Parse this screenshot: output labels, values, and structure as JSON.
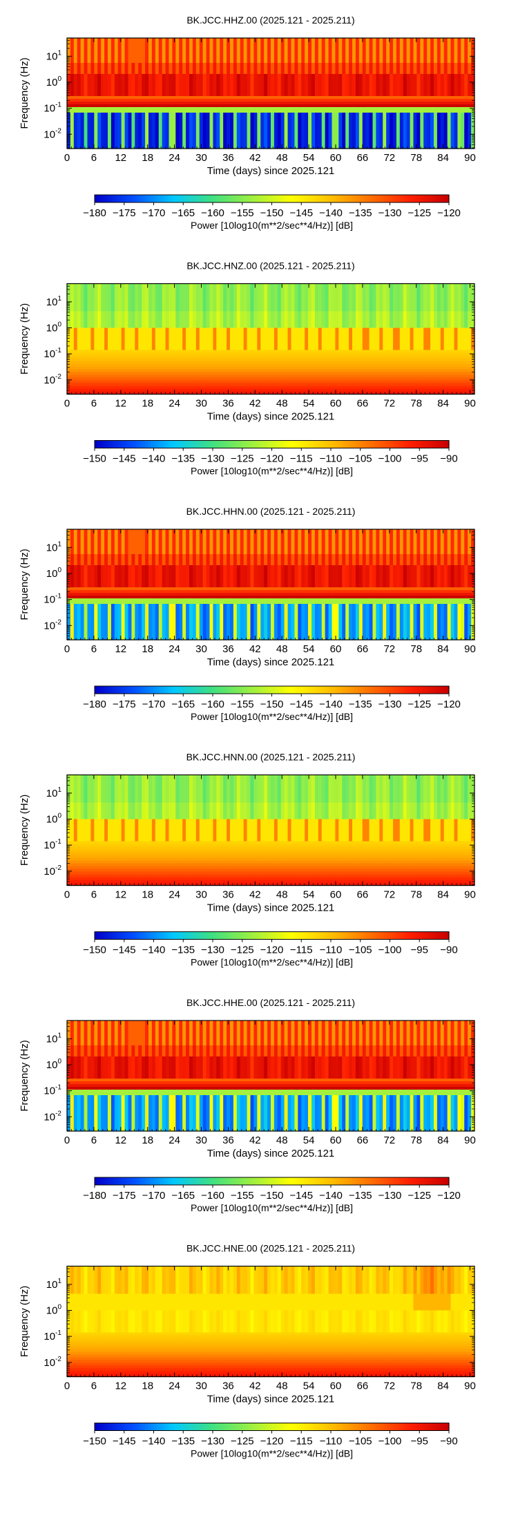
{
  "chart_data": [
    {
      "type": "heatmap",
      "title": "BK.JCC.HHZ.00 (2025.121 - 2025.211)",
      "xlabel": "Time (days) since 2025.121",
      "ylabel": "Frequency (Hz)",
      "x_ticks": [
        "0",
        "6",
        "12",
        "18",
        "24",
        "30",
        "36",
        "42",
        "48",
        "54",
        "60",
        "66",
        "72",
        "78",
        "84",
        "90"
      ],
      "y_ticks": [
        "10^1",
        "10^0",
        "10^-1",
        "10^-2"
      ],
      "xlim": [
        0,
        91
      ],
      "y_scale": "log",
      "colorbar_label": "Power [10log10(m**2/sec**4/Hz)] [dB]",
      "colorbar_ticks": [
        "-180",
        "-175",
        "-170",
        "-165",
        "-160",
        "-155",
        "-150",
        "-145",
        "-140",
        "-135",
        "-130",
        "-125",
        "-120"
      ],
      "clim": [
        -180,
        -120
      ],
      "colormap": [
        "#0000c8",
        "#0050ff",
        "#00c8ff",
        "#40e080",
        "#9ef040",
        "#ffff00",
        "#ffc000",
        "#ff7000",
        "#ff2000",
        "#c80000"
      ],
      "pattern": "high-gain"
    },
    {
      "type": "heatmap",
      "title": "BK.JCC.HNZ.00 (2025.121 - 2025.211)",
      "xlabel": "Time (days) since 2025.121",
      "ylabel": "Frequency (Hz)",
      "x_ticks": [
        "0",
        "6",
        "12",
        "18",
        "24",
        "30",
        "36",
        "42",
        "48",
        "54",
        "60",
        "66",
        "72",
        "78",
        "84",
        "90"
      ],
      "y_ticks": [
        "10^1",
        "10^0",
        "10^-1",
        "10^-2"
      ],
      "xlim": [
        0,
        91
      ],
      "y_scale": "log",
      "colorbar_label": "Power [10log10(m**2/sec**4/Hz)] [dB]",
      "colorbar_ticks": [
        "-150",
        "-145",
        "-140",
        "-135",
        "-130",
        "-125",
        "-120",
        "-115",
        "-110",
        "-105",
        "-100",
        "-95",
        "-90"
      ],
      "clim": [
        -150,
        -90
      ],
      "colormap": [
        "#0000c8",
        "#0050ff",
        "#00c8ff",
        "#40e080",
        "#9ef040",
        "#ffff00",
        "#ffc000",
        "#ff7000",
        "#ff2000",
        "#c80000"
      ],
      "pattern": "strong-motion"
    },
    {
      "type": "heatmap",
      "title": "BK.JCC.HHN.00 (2025.121 - 2025.211)",
      "xlabel": "Time (days) since 2025.121",
      "ylabel": "Frequency (Hz)",
      "x_ticks": [
        "0",
        "6",
        "12",
        "18",
        "24",
        "30",
        "36",
        "42",
        "48",
        "54",
        "60",
        "66",
        "72",
        "78",
        "84",
        "90"
      ],
      "y_ticks": [
        "10^1",
        "10^0",
        "10^-1",
        "10^-2"
      ],
      "xlim": [
        0,
        91
      ],
      "y_scale": "log",
      "colorbar_label": "Power [10log10(m**2/sec**4/Hz)] [dB]",
      "colorbar_ticks": [
        "-180",
        "-175",
        "-170",
        "-165",
        "-160",
        "-155",
        "-150",
        "-145",
        "-140",
        "-135",
        "-130",
        "-125",
        "-120"
      ],
      "clim": [
        -180,
        -120
      ],
      "colormap": [
        "#0000c8",
        "#0050ff",
        "#00c8ff",
        "#40e080",
        "#9ef040",
        "#ffff00",
        "#ffc000",
        "#ff7000",
        "#ff2000",
        "#c80000"
      ],
      "pattern": "high-gain-horizontal"
    },
    {
      "type": "heatmap",
      "title": "BK.JCC.HNN.00 (2025.121 - 2025.211)",
      "xlabel": "Time (days) since 2025.121",
      "ylabel": "Frequency (Hz)",
      "x_ticks": [
        "0",
        "6",
        "12",
        "18",
        "24",
        "30",
        "36",
        "42",
        "48",
        "54",
        "60",
        "66",
        "72",
        "78",
        "84",
        "90"
      ],
      "y_ticks": [
        "10^1",
        "10^0",
        "10^-1",
        "10^-2"
      ],
      "xlim": [
        0,
        91
      ],
      "y_scale": "log",
      "colorbar_label": "Power [10log10(m**2/sec**4/Hz)] [dB]",
      "colorbar_ticks": [
        "-150",
        "-145",
        "-140",
        "-135",
        "-130",
        "-125",
        "-120",
        "-115",
        "-110",
        "-105",
        "-100",
        "-95",
        "-90"
      ],
      "clim": [
        -150,
        -90
      ],
      "colormap": [
        "#0000c8",
        "#0050ff",
        "#00c8ff",
        "#40e080",
        "#9ef040",
        "#ffff00",
        "#ffc000",
        "#ff7000",
        "#ff2000",
        "#c80000"
      ],
      "pattern": "strong-motion"
    },
    {
      "type": "heatmap",
      "title": "BK.JCC.HHE.00 (2025.121 - 2025.211)",
      "xlabel": "Time (days) since 2025.121",
      "ylabel": "Frequency (Hz)",
      "x_ticks": [
        "0",
        "6",
        "12",
        "18",
        "24",
        "30",
        "36",
        "42",
        "48",
        "54",
        "60",
        "66",
        "72",
        "78",
        "84",
        "90"
      ],
      "y_ticks": [
        "10^1",
        "10^0",
        "10^-1",
        "10^-2"
      ],
      "xlim": [
        0,
        91
      ],
      "y_scale": "log",
      "colorbar_label": "Power [10log10(m**2/sec**4/Hz)] [dB]",
      "colorbar_ticks": [
        "-180",
        "-175",
        "-170",
        "-165",
        "-160",
        "-155",
        "-150",
        "-145",
        "-140",
        "-135",
        "-130",
        "-125",
        "-120"
      ],
      "clim": [
        -180,
        -120
      ],
      "colormap": [
        "#0000c8",
        "#0050ff",
        "#00c8ff",
        "#40e080",
        "#9ef040",
        "#ffff00",
        "#ffc000",
        "#ff7000",
        "#ff2000",
        "#c80000"
      ],
      "pattern": "high-gain-horizontal"
    },
    {
      "type": "heatmap",
      "title": "BK.JCC.HNE.00 (2025.121 - 2025.211)",
      "xlabel": "Time (days) since 2025.121",
      "ylabel": "Frequency (Hz)",
      "x_ticks": [
        "0",
        "6",
        "12",
        "18",
        "24",
        "30",
        "36",
        "42",
        "48",
        "54",
        "60",
        "66",
        "72",
        "78",
        "84",
        "90"
      ],
      "y_ticks": [
        "10^1",
        "10^0",
        "10^-1",
        "10^-2"
      ],
      "xlim": [
        0,
        91
      ],
      "y_scale": "log",
      "colorbar_label": "Power [10log10(m**2/sec**4/Hz)] [dB]",
      "colorbar_ticks": [
        "-150",
        "-145",
        "-140",
        "-135",
        "-130",
        "-125",
        "-120",
        "-115",
        "-110",
        "-105",
        "-100",
        "-95",
        "-90"
      ],
      "clim": [
        -150,
        -90
      ],
      "colormap": [
        "#0000c8",
        "#0050ff",
        "#00c8ff",
        "#40e080",
        "#9ef040",
        "#ffff00",
        "#ffc000",
        "#ff7000",
        "#ff2000",
        "#c80000"
      ],
      "pattern": "strong-motion-east"
    }
  ]
}
